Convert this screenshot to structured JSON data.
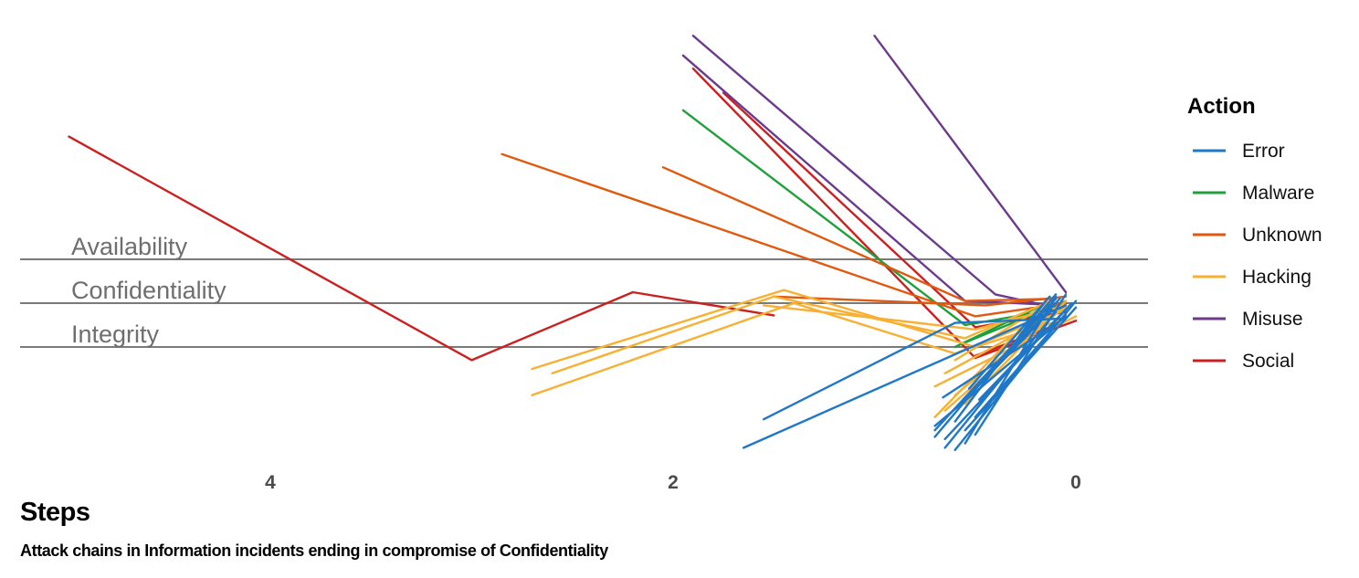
{
  "chart_data": {
    "type": "line",
    "title": "Attack chains in Information incidents ending in compromise of Confidentiality",
    "xlabel": "Steps",
    "x_ticks": [
      4,
      2,
      0
    ],
    "xlim": [
      5.25,
      -0.35
    ],
    "reference_lines": [
      "Availability",
      "Confidentiality",
      "Integrity"
    ],
    "legend": {
      "title": "Action",
      "position": "right",
      "entries": [
        {
          "name": "Error",
          "color": "#1f77c8"
        },
        {
          "name": "Malware",
          "color": "#1fa03a"
        },
        {
          "name": "Unknown",
          "color": "#e0590f"
        },
        {
          "name": "Hacking",
          "color": "#f7b032"
        },
        {
          "name": "Misuse",
          "color": "#6b3a8c"
        },
        {
          "name": "Social",
          "color": "#cc2020"
        }
      ]
    },
    "note": "y values are vertical positions relative to the attribute bands: 1 = Availability, 0 = Confidentiality, -1 = Integrity (jittered)",
    "series": [
      {
        "name": "Social",
        "color": "#cc2020",
        "x": [
          5,
          3,
          2.2,
          1.5
        ],
        "y": [
          3.8,
          -1.3,
          0.25,
          -0.28
        ]
      },
      {
        "name": "Social",
        "color": "#cc2020",
        "x": [
          1.9,
          0.5,
          0
        ],
        "y": [
          5.35,
          -1.25,
          -0.4
        ]
      },
      {
        "name": "Social",
        "color": "#cc2020",
        "x": [
          1.75,
          0.5,
          0.05
        ],
        "y": [
          4.8,
          -0.55,
          -0.2
        ]
      },
      {
        "name": "Social",
        "color": "#cc2020",
        "x": [
          0.5,
          0.1
        ],
        "y": [
          -1.2,
          -0.5
        ]
      },
      {
        "name": "Misuse",
        "color": "#6b3a8c",
        "x": [
          1.9,
          0.4,
          0.1
        ],
        "y": [
          6.1,
          0.2,
          -0.1
        ]
      },
      {
        "name": "Misuse",
        "color": "#6b3a8c",
        "x": [
          1.95,
          0.55,
          0.05
        ],
        "y": [
          5.65,
          0.05,
          -0.05
        ]
      },
      {
        "name": "Misuse",
        "color": "#6b3a8c",
        "x": [
          1,
          0.05
        ],
        "y": [
          6.1,
          0.25
        ]
      },
      {
        "name": "Malware",
        "color": "#1fa03a",
        "x": [
          1.95,
          0.55,
          0.05
        ],
        "y": [
          4.4,
          -0.5,
          -0.1
        ]
      },
      {
        "name": "Malware",
        "color": "#1fa03a",
        "x": [
          0.55,
          0.05
        ],
        "y": [
          -0.9,
          0.05
        ]
      },
      {
        "name": "Malware",
        "color": "#1fa03a",
        "x": [
          0.6,
          0.1
        ],
        "y": [
          -1.0,
          0.1
        ]
      },
      {
        "name": "Unknown",
        "color": "#e0590f",
        "x": [
          2.85,
          0.5,
          0.05
        ],
        "y": [
          3.4,
          -0.3,
          0.0
        ]
      },
      {
        "name": "Unknown",
        "color": "#e0590f",
        "x": [
          2.05,
          0.55,
          0.1
        ],
        "y": [
          3.1,
          0.05,
          0.1
        ]
      },
      {
        "name": "Unknown",
        "color": "#e0590f",
        "x": [
          1.5,
          0.45,
          0.05
        ],
        "y": [
          0.15,
          -0.05,
          0.15
        ]
      },
      {
        "name": "Hacking",
        "color": "#f7b032",
        "x": [
          2.7,
          1.45,
          0.5,
          0.05
        ],
        "y": [
          -1.5,
          0.3,
          -1.0,
          -0.35
        ]
      },
      {
        "name": "Hacking",
        "color": "#f7b032",
        "x": [
          2.6,
          1.5,
          0.55,
          0.1
        ],
        "y": [
          -1.6,
          0.15,
          -0.8,
          0.1
        ]
      },
      {
        "name": "Hacking",
        "color": "#f7b032",
        "x": [
          2.7,
          1.4,
          0.6,
          0.05
        ],
        "y": [
          -2.1,
          0.0,
          -1.15,
          -0.15
        ]
      },
      {
        "name": "Hacking",
        "color": "#f7b032",
        "x": [
          1.55,
          0.5,
          0.05
        ],
        "y": [
          -0.05,
          -0.6,
          -0.05
        ]
      },
      {
        "name": "Hacking",
        "color": "#f7b032",
        "x": [
          0.6,
          0.1
        ],
        "y": [
          -1.3,
          0.1
        ]
      },
      {
        "name": "Hacking",
        "color": "#f7b032",
        "x": [
          0.65,
          0.05
        ],
        "y": [
          -1.6,
          -0.1
        ]
      },
      {
        "name": "Hacking",
        "color": "#f7b032",
        "x": [
          0.7,
          0.0
        ],
        "y": [
          -1.9,
          -0.3
        ]
      },
      {
        "name": "Hacking",
        "color": "#f7b032",
        "x": [
          0.6,
          0.1
        ],
        "y": [
          -2.1,
          -0.2
        ]
      },
      {
        "name": "Hacking",
        "color": "#f7b032",
        "x": [
          0.55,
          0.05
        ],
        "y": [
          -2.3,
          0.05
        ]
      },
      {
        "name": "Hacking",
        "color": "#f7b032",
        "x": [
          0.7,
          0.15
        ],
        "y": [
          -2.6,
          0.0
        ]
      },
      {
        "name": "Hacking",
        "color": "#f7b032",
        "x": [
          0.65,
          0.1
        ],
        "y": [
          -2.45,
          -0.25
        ]
      },
      {
        "name": "Error",
        "color": "#1f77c8",
        "x": [
          1.55,
          0.6,
          0.05
        ],
        "y": [
          -2.65,
          -0.45,
          -0.35
        ]
      },
      {
        "name": "Error",
        "color": "#1f77c8",
        "x": [
          1.65,
          0.05
        ],
        "y": [
          -3.3,
          -0.05
        ]
      },
      {
        "name": "Error",
        "color": "#1f77c8",
        "x": [
          0.7,
          0.1
        ],
        "y": [
          -2.9,
          0.1
        ]
      },
      {
        "name": "Error",
        "color": "#1f77c8",
        "x": [
          0.65,
          0.05
        ],
        "y": [
          -3.1,
          -0.15
        ]
      },
      {
        "name": "Error",
        "color": "#1f77c8",
        "x": [
          0.6,
          0.0
        ],
        "y": [
          -3.35,
          0.05
        ]
      },
      {
        "name": "Error",
        "color": "#1f77c8",
        "x": [
          0.55,
          0.1
        ],
        "y": [
          -3.2,
          0.15
        ]
      },
      {
        "name": "Error",
        "color": "#1f77c8",
        "x": [
          0.7,
          0.05
        ],
        "y": [
          -2.8,
          -0.3
        ]
      },
      {
        "name": "Error",
        "color": "#1f77c8",
        "x": [
          0.5,
          0.05
        ],
        "y": [
          -3.0,
          0.2
        ]
      },
      {
        "name": "Error",
        "color": "#1f77c8",
        "x": [
          0.65,
          0.1
        ],
        "y": [
          -3.3,
          -0.2
        ]
      },
      {
        "name": "Error",
        "color": "#1f77c8",
        "x": [
          0.6,
          0.15
        ],
        "y": [
          -2.7,
          0.05
        ]
      },
      {
        "name": "Error",
        "color": "#1f77c8",
        "x": [
          0.55,
          0.0
        ],
        "y": [
          -2.9,
          -0.1
        ]
      },
      {
        "name": "Error",
        "color": "#1f77c8",
        "x": [
          0.7,
          0.1
        ],
        "y": [
          -3.05,
          0.2
        ]
      },
      {
        "name": "Error",
        "color": "#1f77c8",
        "x": [
          0.5,
          0.05
        ],
        "y": [
          -2.6,
          -0.25
        ]
      },
      {
        "name": "Error",
        "color": "#1f77c8",
        "x": [
          0.62,
          0.08
        ],
        "y": [
          -2.5,
          0.1
        ]
      },
      {
        "name": "Error",
        "color": "#1f77c8",
        "x": [
          0.58,
          0.12
        ],
        "y": [
          -2.35,
          -0.15
        ]
      },
      {
        "name": "Error",
        "color": "#1f77c8",
        "x": [
          0.48,
          0.02
        ],
        "y": [
          -2.2,
          0.0
        ]
      },
      {
        "name": "Error",
        "color": "#1f77c8",
        "x": [
          0.66,
          0.06
        ],
        "y": [
          -2.15,
          -0.35
        ]
      },
      {
        "name": "Error",
        "color": "#1f77c8",
        "x": [
          0.53,
          0.13
        ],
        "y": [
          -1.95,
          0.15
        ]
      }
    ]
  }
}
